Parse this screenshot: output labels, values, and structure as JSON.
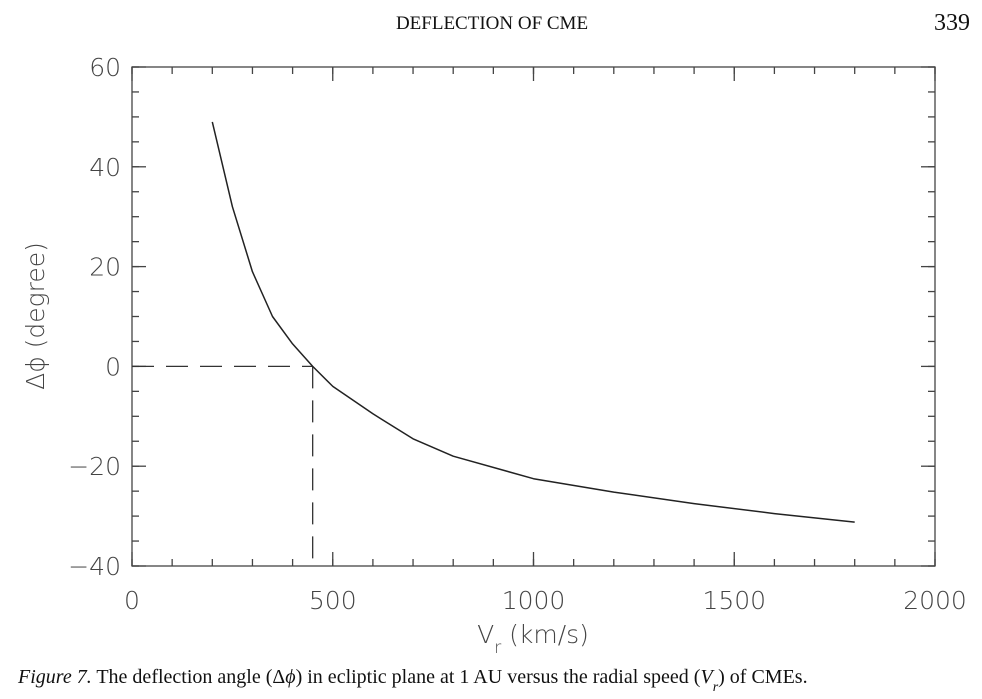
{
  "header": {
    "title": "DEFLECTION OF CME",
    "page_number": "339"
  },
  "chart_data": {
    "type": "line",
    "ylabel": "Δϕ (degree)",
    "xlabel": [
      {
        "text": "V"
      },
      {
        "text": "r",
        "sub": true
      },
      {
        "text": " (km/s)"
      }
    ],
    "x": [
      200,
      250,
      300,
      350,
      400,
      450,
      500,
      600,
      700,
      800,
      1000,
      1200,
      1400,
      1600,
      1800
    ],
    "series": [
      {
        "color": "#222222",
        "values": [
          49,
          32,
          19,
          10,
          4.5,
          0,
          -4,
          -9.5,
          -14.5,
          -18,
          -22.5,
          -25.2,
          -27.5,
          -29.5,
          -31.2
        ]
      }
    ],
    "guide": {
      "x": 450,
      "y": 0
    },
    "xlim": [
      0,
      2000
    ],
    "xticks": [
      0,
      500,
      1000,
      1500,
      2000
    ],
    "ylim": [
      -40,
      60
    ],
    "yticks": [
      {
        "value": -40,
        "label": "−40"
      },
      {
        "value": -20,
        "label": "−20"
      },
      0,
      20,
      40,
      60
    ],
    "minor_xstep": 100,
    "minor_ystep": 5
  },
  "caption": [
    {
      "text": "Figure 7.",
      "italic": true
    },
    {
      "text": " The deflection angle (Δ"
    },
    {
      "text": "ϕ",
      "italic": true
    },
    {
      "text": ") in ecliptic plane at 1 AU versus the radial speed ("
    },
    {
      "text": "V",
      "italic": true
    },
    {
      "text": "r",
      "italic": true,
      "sub": true
    },
    {
      "text": ") of CMEs."
    }
  ]
}
